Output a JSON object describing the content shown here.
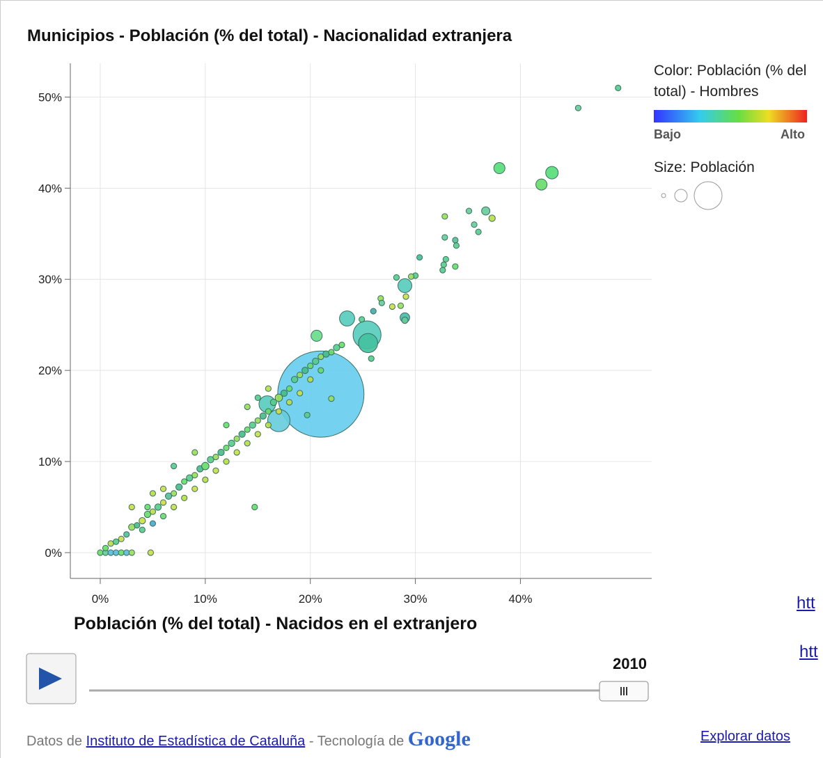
{
  "chart_data": {
    "type": "bubble",
    "title": "Municipios - Población (% del total) - Nacionalidad extranjera",
    "xlabel": "Población (% del total) - Nacidos en el extranjero",
    "xlim": [
      -2.85,
      52.5
    ],
    "ylim": [
      -2.83,
      53.7
    ],
    "xticks": [
      {
        "value": 0,
        "label": "0%"
      },
      {
        "value": 10,
        "label": "10%"
      },
      {
        "value": 20,
        "label": "20%"
      },
      {
        "value": 30,
        "label": "30%"
      },
      {
        "value": 40,
        "label": "40%"
      }
    ],
    "yticks": [
      {
        "value": 0,
        "label": "0%"
      },
      {
        "value": 10,
        "label": "10%"
      },
      {
        "value": 20,
        "label": "20%"
      },
      {
        "value": 30,
        "label": "30%"
      },
      {
        "value": 40,
        "label": "40%"
      },
      {
        "value": 50,
        "label": "50%"
      }
    ],
    "grid": true,
    "color_legend": {
      "title": "Color: Población (% del total) - Hombres",
      "low": "Bajo",
      "high": "Alto"
    },
    "size_legend": {
      "title": "Size: Población"
    },
    "year": "2010",
    "x": [
      21,
      25.4,
      17,
      25.5,
      15.9,
      29,
      23.5,
      43,
      38,
      42,
      20.6,
      29,
      36.7,
      0,
      0.5,
      1,
      1.5,
      2,
      2.5,
      3,
      0.5,
      1,
      1.5,
      2,
      2.5,
      3,
      3.5,
      4,
      4,
      4.5,
      5,
      5,
      5.5,
      6,
      6,
      6.5,
      7,
      7,
      7.5,
      8,
      8,
      8.5,
      9,
      9,
      9.5,
      10,
      10,
      10.5,
      11,
      11,
      11.5,
      12,
      12,
      12.5,
      13,
      13,
      13.5,
      14,
      14,
      14.5,
      15,
      15,
      15.5,
      16,
      16,
      16.5,
      17,
      17,
      17.5,
      18,
      18,
      18.5,
      19,
      19,
      19.5,
      20,
      20,
      20.5,
      21,
      21,
      21.5,
      22,
      22.5,
      23,
      7,
      4.5,
      3,
      5,
      6,
      9,
      12,
      15,
      16,
      14,
      49.3,
      45.5,
      35.1,
      32.8,
      37.3,
      35.6,
      36,
      32.8,
      33.8,
      33.9,
      30.4,
      32.9,
      32.7,
      33.8,
      32.6,
      30,
      29.6,
      28.2,
      29.1,
      26.7,
      26.8,
      28.6,
      27.8,
      29,
      26,
      24.9,
      25.8,
      22,
      19.7,
      14.7,
      4.8
    ],
    "values": [
      17.4,
      23.9,
      14.5,
      23.0,
      16.3,
      29.3,
      25.7,
      41.7,
      42.2,
      40.4,
      23.8,
      25.8,
      37.5,
      0,
      0,
      0,
      0,
      0,
      0,
      0,
      0.5,
      1,
      1.2,
      1.5,
      2,
      2.8,
      3,
      3.5,
      2.5,
      4.2,
      4.5,
      3.2,
      5,
      5.5,
      4,
      6.2,
      6.5,
      5,
      7.2,
      7.8,
      6,
      8.2,
      8.5,
      7,
      9.2,
      9.5,
      8,
      10.2,
      10.5,
      9,
      11,
      11.5,
      10,
      12,
      12.5,
      11,
      13,
      13.5,
      12,
      14,
      14.5,
      13,
      15,
      15.5,
      14,
      16.5,
      17,
      15.5,
      17.5,
      18,
      16.5,
      19,
      19.5,
      17.5,
      20,
      20.5,
      19,
      21,
      21.5,
      20,
      21.8,
      22,
      22.5,
      22.8,
      9.5,
      5,
      5,
      6.5,
      7,
      11,
      14,
      17,
      18,
      16,
      51.0,
      48.8,
      37.5,
      36.9,
      36.7,
      36.0,
      35.2,
      34.6,
      34.3,
      33.7,
      32.4,
      32.2,
      31.6,
      31.4,
      31.0,
      30.4,
      30.3,
      30.2,
      28.1,
      27.9,
      27.4,
      27.1,
      27.0,
      25.5,
      26.5,
      25.6,
      21.3,
      16.9,
      15.1,
      5.0,
      0
    ],
    "sizes": [
      1620000,
      170000,
      108000,
      80000,
      60000,
      42000,
      50000,
      34000,
      27000,
      27000,
      27000,
      20000,
      15000,
      7000,
      7000,
      7000,
      7000,
      7000,
      7000,
      7000,
      7000,
      7000,
      7000,
      7000,
      7000,
      9000,
      7000,
      9000,
      7000,
      9000,
      7000,
      7000,
      9000,
      7000,
      7000,
      9000,
      7000,
      7000,
      9000,
      7000,
      7000,
      9000,
      7000,
      7000,
      9000,
      12000,
      7000,
      9000,
      7000,
      7000,
      9000,
      7000,
      7000,
      9000,
      7000,
      7000,
      9000,
      7000,
      7000,
      9000,
      7000,
      7000,
      9000,
      7000,
      7000,
      9000,
      12000,
      7000,
      9000,
      7000,
      7000,
      9000,
      7000,
      7000,
      9000,
      7000,
      7000,
      9000,
      7000,
      7000,
      9000,
      7000,
      9000,
      7000,
      7000,
      7000,
      7000,
      7000,
      7000,
      7000,
      7000,
      7000,
      7000,
      7000,
      7000,
      7000,
      7000,
      7000,
      9000,
      7000,
      7000,
      7000,
      7000,
      7000,
      7000,
      7000,
      7000,
      7000,
      7000,
      7000,
      7000,
      7000,
      7000,
      7000,
      7000,
      7000,
      7000,
      9000,
      7000,
      7000,
      7000,
      7000,
      7000,
      7000,
      7000
    ],
    "colors": [
      "#66ccee",
      "#55ccbb",
      "#66ccdd",
      "#44c0a0",
      "#55ccbb",
      "#55ccbb",
      "#55ccbb",
      "#55dd77",
      "#55dd77",
      "#66dd66",
      "#66dd88",
      "#44bbaa",
      "#66cc99",
      "#66dd66",
      "#66cc99",
      "#55bbdd",
      "#55bbdd",
      "#66dd66",
      "#55bbdd",
      "#99dd55",
      "#66dd66",
      "#bbdd44",
      "#55cc88",
      "#ccdd44",
      "#55bb99",
      "#99dd55",
      "#44bb88",
      "#ccdd44",
      "#55cc88",
      "#66dd66",
      "#bbdd44",
      "#44aacc",
      "#55cc88",
      "#ccdd44",
      "#66dd66",
      "#55bb99",
      "#99dd55",
      "#ccdd44",
      "#44bb88",
      "#66dd66",
      "#bbdd44",
      "#55cc88",
      "#99dd55",
      "#ccdd44",
      "#44bb88",
      "#66dd66",
      "#bbdd44",
      "#55cc88",
      "#99dd55",
      "#ccdd44",
      "#44bb88",
      "#66dd66",
      "#bbdd44",
      "#55cc88",
      "#99dd55",
      "#ccdd44",
      "#44bb88",
      "#66dd66",
      "#bbdd44",
      "#55cc88",
      "#99dd55",
      "#ccdd44",
      "#44bb88",
      "#66dd66",
      "#bbdd44",
      "#55cc88",
      "#99dd55",
      "#ccdd44",
      "#44bb88",
      "#66dd66",
      "#bbdd44",
      "#55cc88",
      "#99dd55",
      "#ccdd44",
      "#44bb88",
      "#66dd66",
      "#bbdd44",
      "#55cc88",
      "#99dd55",
      "#66dd66",
      "#44bb88",
      "#66dd66",
      "#55cc88",
      "#66dd66",
      "#55cc88",
      "#66dd66",
      "#ccdd44",
      "#bbdd44",
      "#ccdd44",
      "#99dd55",
      "#66dd66",
      "#55cc88",
      "#bbdd44",
      "#99dd55",
      "#55cc88",
      "#66cc99",
      "#66cc99",
      "#99dd55",
      "#bbdd44",
      "#66cc99",
      "#55cc88",
      "#66cc99",
      "#55bb99",
      "#55cc88",
      "#44bb99",
      "#55cc88",
      "#55cc88",
      "#66dd66",
      "#55cc88",
      "#55cc88",
      "#99dd55",
      "#55cc88",
      "#ccdd44",
      "#99dd55",
      "#66cc99",
      "#99dd55",
      "#ccdd44",
      "#66cc99",
      "#44aaaa",
      "#55cc88",
      "#55cc88",
      "#99dd55",
      "#55cc88",
      "#66dd66",
      "#ccdd44",
      "#44aadd"
    ]
  },
  "footer": {
    "source_prefix": "Datos de",
    "source": "Instituto de Estadística de Cataluña",
    "tech": "- Tecnología de",
    "brand": "Google",
    "explore": "Explorar datos"
  },
  "links": [
    "htt",
    "htt"
  ]
}
